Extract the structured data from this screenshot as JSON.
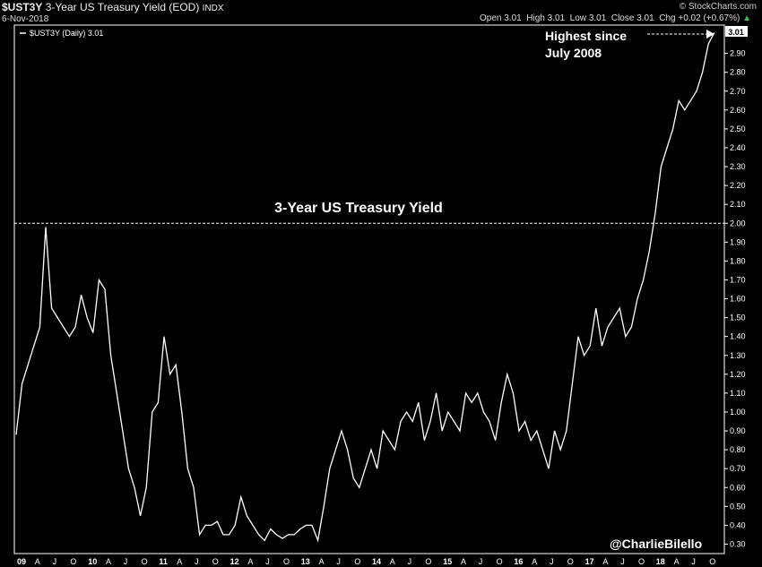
{
  "header": {
    "symbol": "$UST3Y",
    "title": "3-Year US Treasury Yield (EOD)",
    "exchange": "INDX",
    "date": "6-Nov-2018",
    "brand": "© StockCharts.com",
    "open_label": "Open",
    "open": "3.01",
    "high_label": "High",
    "high": "3.01",
    "low_label": "Low",
    "low": "3.01",
    "close_label": "Close",
    "close": "3.01",
    "chg_label": "Chg",
    "chg": "+0.02 (+0.67%)",
    "chg_arrow": "▲"
  },
  "legend": {
    "label": "$UST3Y (Daily) 3.01"
  },
  "last_value_tag": "3.01",
  "annotations": {
    "reference_line_value": 2.0,
    "center_title": "3-Year US Treasury Yield",
    "callout_line1": "Highest since",
    "callout_line2": "July 2008",
    "handle": "@CharlieBilello"
  },
  "colors": {
    "background": "#000000",
    "line": "#ffffff",
    "up": "#2ecc40",
    "tag_bg": "#ffffff"
  },
  "chart_data": {
    "type": "line",
    "title": "",
    "ylim": [
      0.25,
      3.05
    ],
    "y_ticks": [
      "0.30",
      "0.40",
      "0.50",
      "0.60",
      "0.70",
      "0.80",
      "0.90",
      "1.00",
      "1.10",
      "1.20",
      "1.30",
      "1.40",
      "1.50",
      "1.60",
      "1.70",
      "1.80",
      "1.90",
      "2.00",
      "2.10",
      "2.20",
      "2.30",
      "2.40",
      "2.50",
      "2.60",
      "2.70",
      "2.80",
      "2.90"
    ],
    "x_tick_labels": [
      "09",
      "A",
      "J",
      "O",
      "10",
      "A",
      "J",
      "O",
      "11",
      "A",
      "J",
      "O",
      "12",
      "A",
      "J",
      "O",
      "13",
      "A",
      "J",
      "O",
      "14",
      "A",
      "J",
      "O",
      "15",
      "A",
      "J",
      "O",
      "16",
      "A",
      "J",
      "O",
      "17",
      "A",
      "J",
      "O",
      "18",
      "A",
      "J",
      "O"
    ],
    "grid": false,
    "series": [
      {
        "name": "$UST3Y (Daily)",
        "x": [
          "2009-01",
          "2009-02",
          "2009-03",
          "2009-04",
          "2009-05",
          "2009-06",
          "2009-07",
          "2009-08",
          "2009-09",
          "2009-10",
          "2009-11",
          "2009-12",
          "2010-01",
          "2010-02",
          "2010-03",
          "2010-04",
          "2010-05",
          "2010-06",
          "2010-07",
          "2010-08",
          "2010-09",
          "2010-10",
          "2010-11",
          "2010-12",
          "2011-01",
          "2011-02",
          "2011-03",
          "2011-04",
          "2011-05",
          "2011-06",
          "2011-07",
          "2011-08",
          "2011-09",
          "2011-10",
          "2011-11",
          "2011-12",
          "2012-01",
          "2012-02",
          "2012-03",
          "2012-04",
          "2012-05",
          "2012-06",
          "2012-07",
          "2012-08",
          "2012-09",
          "2012-10",
          "2012-11",
          "2012-12",
          "2013-01",
          "2013-02",
          "2013-03",
          "2013-04",
          "2013-05",
          "2013-06",
          "2013-07",
          "2013-08",
          "2013-09",
          "2013-10",
          "2013-11",
          "2013-12",
          "2014-01",
          "2014-02",
          "2014-03",
          "2014-04",
          "2014-05",
          "2014-06",
          "2014-07",
          "2014-08",
          "2014-09",
          "2014-10",
          "2014-11",
          "2014-12",
          "2015-01",
          "2015-02",
          "2015-03",
          "2015-04",
          "2015-05",
          "2015-06",
          "2015-07",
          "2015-08",
          "2015-09",
          "2015-10",
          "2015-11",
          "2015-12",
          "2016-01",
          "2016-02",
          "2016-03",
          "2016-04",
          "2016-05",
          "2016-06",
          "2016-07",
          "2016-08",
          "2016-09",
          "2016-10",
          "2016-11",
          "2016-12",
          "2017-01",
          "2017-02",
          "2017-03",
          "2017-04",
          "2017-05",
          "2017-06",
          "2017-07",
          "2017-08",
          "2017-09",
          "2017-10",
          "2017-11",
          "2017-12",
          "2018-01",
          "2018-02",
          "2018-03",
          "2018-04",
          "2018-05",
          "2018-06",
          "2018-07",
          "2018-08",
          "2018-09",
          "2018-10",
          "2018-11"
        ],
        "values": [
          0.88,
          1.15,
          1.25,
          1.35,
          1.45,
          1.98,
          1.55,
          1.5,
          1.45,
          1.4,
          1.45,
          1.62,
          1.5,
          1.42,
          1.7,
          1.65,
          1.3,
          1.1,
          0.9,
          0.7,
          0.6,
          0.45,
          0.6,
          1.0,
          1.05,
          1.4,
          1.2,
          1.25,
          1.0,
          0.7,
          0.6,
          0.35,
          0.4,
          0.4,
          0.42,
          0.35,
          0.35,
          0.4,
          0.55,
          0.45,
          0.4,
          0.35,
          0.32,
          0.38,
          0.35,
          0.33,
          0.35,
          0.35,
          0.38,
          0.4,
          0.4,
          0.32,
          0.5,
          0.7,
          0.8,
          0.9,
          0.8,
          0.65,
          0.6,
          0.7,
          0.8,
          0.7,
          0.9,
          0.85,
          0.8,
          0.95,
          1.0,
          0.95,
          1.05,
          0.85,
          0.95,
          1.1,
          0.9,
          1.0,
          0.95,
          0.9,
          1.1,
          1.05,
          1.1,
          1.0,
          0.95,
          0.85,
          1.05,
          1.2,
          1.1,
          0.9,
          0.95,
          0.85,
          0.9,
          0.8,
          0.7,
          0.9,
          0.8,
          0.9,
          1.15,
          1.4,
          1.3,
          1.35,
          1.55,
          1.35,
          1.45,
          1.5,
          1.55,
          1.4,
          1.45,
          1.6,
          1.7,
          1.85,
          2.05,
          2.3,
          2.4,
          2.5,
          2.65,
          2.6,
          2.65,
          2.7,
          2.8,
          2.95,
          3.01
        ]
      }
    ]
  }
}
